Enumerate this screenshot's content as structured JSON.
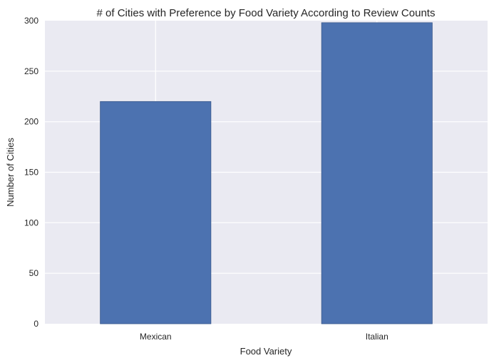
{
  "chart_data": {
    "type": "bar",
    "title": "# of Cities with Preference by Food Variety According to Review Counts",
    "xlabel": "Food Variety",
    "ylabel": "Number of Cities",
    "categories": [
      "Mexican",
      "Italian"
    ],
    "values": [
      220,
      298
    ],
    "ylim": [
      0,
      300
    ],
    "yticks": [
      0,
      50,
      100,
      150,
      200,
      250,
      300
    ],
    "grid": true,
    "legend": "none",
    "colors": {
      "bar": "#4c72b0",
      "bar_edge": "#3b5a8c",
      "plot_background": "#eaeaf2",
      "grid": "#ffffff",
      "text": "#262626"
    }
  }
}
